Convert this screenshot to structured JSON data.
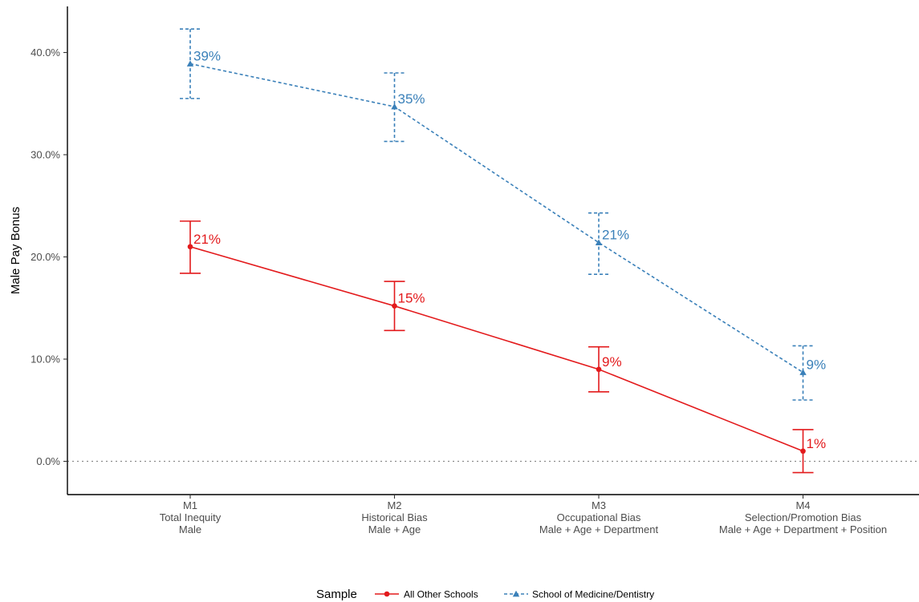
{
  "chart_data": {
    "type": "line",
    "ylabel": "Male Pay Bonus",
    "ylim": [
      -0.033,
      0.445
    ],
    "yticks": [
      0.0,
      0.1,
      0.2,
      0.3,
      0.4
    ],
    "ytick_labels": [
      "0.0%",
      "10.0%",
      "20.0%",
      "30.0%",
      "40.0%"
    ],
    "reference_line": 0.0,
    "categories": [
      [
        "M1",
        "Total Inequity",
        "Male"
      ],
      [
        "M2",
        "Historical Bias",
        "Male + Age"
      ],
      [
        "M3",
        "Occupational Bias",
        "Male + Age + Department"
      ],
      [
        "M4",
        "Selection/Promotion Bias",
        "Male + Age + Department + Position"
      ]
    ],
    "legend_title": "Sample",
    "legend_position": "bottom",
    "series": [
      {
        "name": "All Other Schools",
        "color": "#e31a1c",
        "line_style": "solid",
        "marker": "circle",
        "values": [
          0.21,
          0.152,
          0.09,
          0.01
        ],
        "lower": [
          0.184,
          0.128,
          0.068,
          -0.011
        ],
        "upper": [
          0.235,
          0.176,
          0.112,
          0.031
        ],
        "labels": [
          "21%",
          "15%",
          "9%",
          "1%"
        ]
      },
      {
        "name": "School of Medicine/Dentistry",
        "color": "#3a80b9",
        "line_style": "dashed",
        "marker": "triangle",
        "values": [
          0.389,
          0.347,
          0.214,
          0.087
        ],
        "lower": [
          0.355,
          0.313,
          0.183,
          0.06
        ],
        "upper": [
          0.423,
          0.38,
          0.243,
          0.113
        ],
        "labels": [
          "39%",
          "35%",
          "21%",
          "9%"
        ]
      }
    ]
  }
}
